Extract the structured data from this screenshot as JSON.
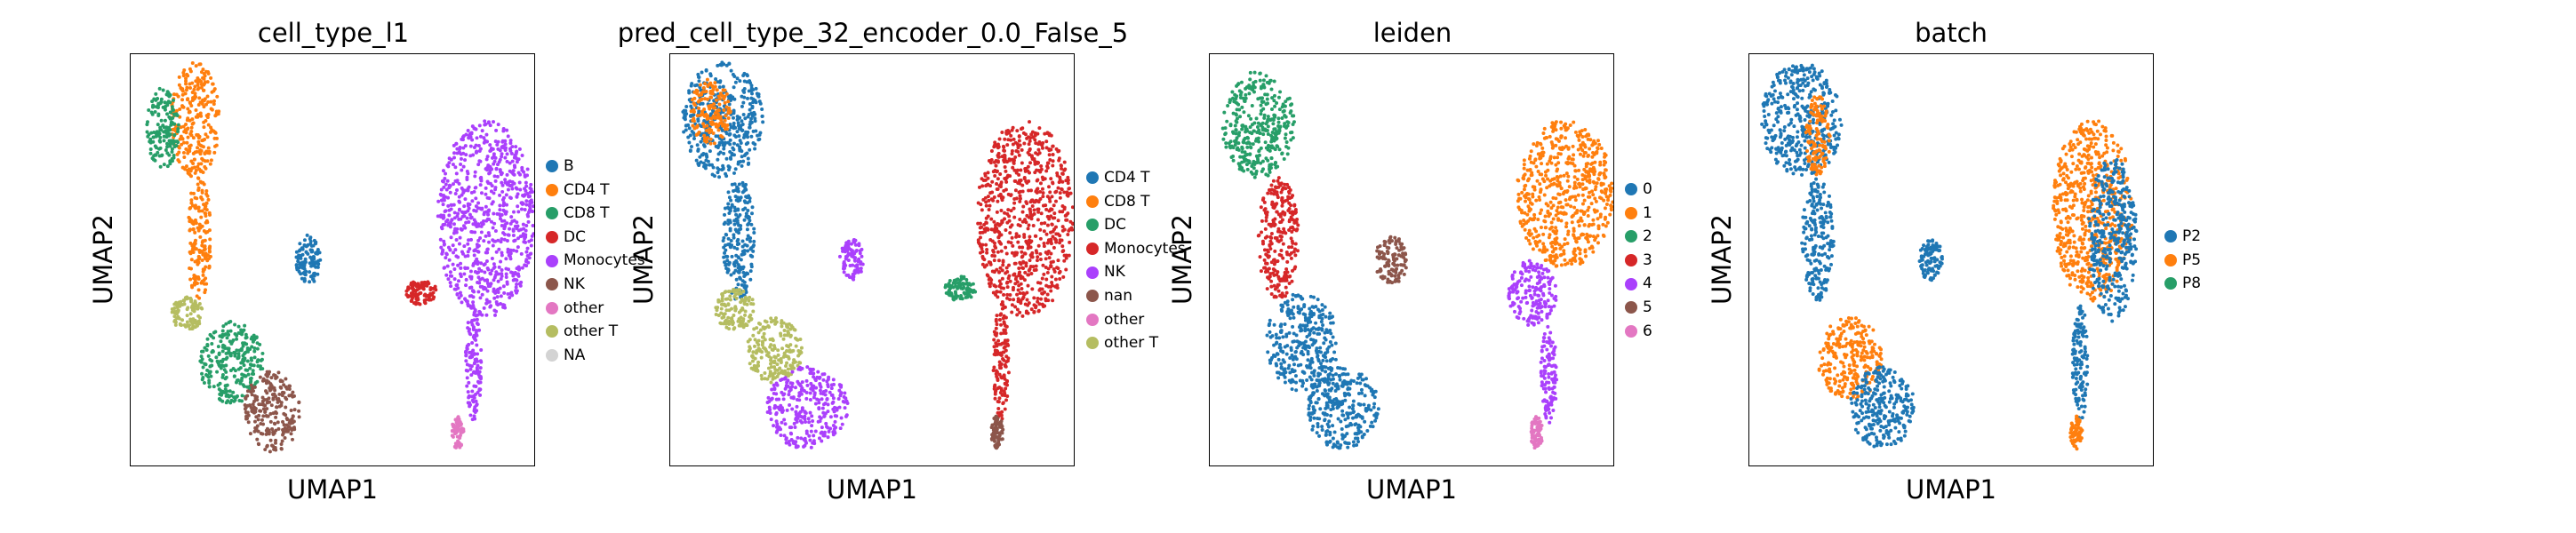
{
  "chart_data": [
    {
      "type": "scatter",
      "title": "cell_type_l1",
      "xlabel": "UMAP1",
      "ylabel": "UMAP2",
      "grid": false,
      "legend_placement": "right",
      "legend": [
        {
          "label": "B",
          "color": "#1f77b4"
        },
        {
          "label": "CD4 T",
          "color": "#ff7f0e"
        },
        {
          "label": "CD8 T",
          "color": "#279e68"
        },
        {
          "label": "DC",
          "color": "#d62728"
        },
        {
          "label": "Monocytes",
          "color": "#aa40fc"
        },
        {
          "label": "NK",
          "color": "#8c564b"
        },
        {
          "label": "other",
          "color": "#e377c2"
        },
        {
          "label": "other T",
          "color": "#b5bd61"
        },
        {
          "label": "NA",
          "color": "#d3d3d3"
        }
      ],
      "regions": [
        {
          "color_index": 1,
          "cx": 0.16,
          "cy": 0.84,
          "rx": 0.06,
          "ry": 0.14
        },
        {
          "color_index": 2,
          "cx": 0.08,
          "cy": 0.82,
          "rx": 0.04,
          "ry": 0.1
        },
        {
          "color_index": 1,
          "cx": 0.17,
          "cy": 0.55,
          "rx": 0.03,
          "ry": 0.15
        },
        {
          "color_index": 7,
          "cx": 0.14,
          "cy": 0.37,
          "rx": 0.04,
          "ry": 0.04
        },
        {
          "color_index": 2,
          "cx": 0.25,
          "cy": 0.25,
          "rx": 0.08,
          "ry": 0.1
        },
        {
          "color_index": 5,
          "cx": 0.35,
          "cy": 0.13,
          "rx": 0.07,
          "ry": 0.1
        },
        {
          "color_index": 0,
          "cx": 0.44,
          "cy": 0.5,
          "rx": 0.03,
          "ry": 0.06
        },
        {
          "color_index": 4,
          "cx": 0.88,
          "cy": 0.6,
          "rx": 0.12,
          "ry": 0.24
        },
        {
          "color_index": 4,
          "cx": 0.85,
          "cy": 0.25,
          "rx": 0.02,
          "ry": 0.14
        },
        {
          "color_index": 3,
          "cx": 0.72,
          "cy": 0.42,
          "rx": 0.04,
          "ry": 0.03
        },
        {
          "color_index": 6,
          "cx": 0.81,
          "cy": 0.08,
          "rx": 0.015,
          "ry": 0.04
        }
      ]
    },
    {
      "type": "scatter",
      "title": "pred_cell_type_32_encoder_0.0_False_5",
      "xlabel": "UMAP1",
      "ylabel": "UMAP2",
      "grid": false,
      "legend_placement": "right",
      "legend": [
        {
          "label": "CD4 T",
          "color": "#1f77b4"
        },
        {
          "label": "CD8 T",
          "color": "#ff7f0e"
        },
        {
          "label": "DC",
          "color": "#279e68"
        },
        {
          "label": "Monocytes",
          "color": "#d62728"
        },
        {
          "label": "NK",
          "color": "#aa40fc"
        },
        {
          "label": "nan",
          "color": "#8c564b"
        },
        {
          "label": "other",
          "color": "#e377c2"
        },
        {
          "label": "other T",
          "color": "#b5bd61"
        }
      ],
      "regions": [
        {
          "color_index": 0,
          "cx": 0.13,
          "cy": 0.84,
          "rx": 0.1,
          "ry": 0.14
        },
        {
          "color_index": 1,
          "cx": 0.1,
          "cy": 0.86,
          "rx": 0.05,
          "ry": 0.08
        },
        {
          "color_index": 0,
          "cx": 0.17,
          "cy": 0.55,
          "rx": 0.04,
          "ry": 0.15
        },
        {
          "color_index": 7,
          "cx": 0.16,
          "cy": 0.38,
          "rx": 0.05,
          "ry": 0.05
        },
        {
          "color_index": 7,
          "cx": 0.26,
          "cy": 0.28,
          "rx": 0.07,
          "ry": 0.08
        },
        {
          "color_index": 4,
          "cx": 0.34,
          "cy": 0.14,
          "rx": 0.1,
          "ry": 0.1
        },
        {
          "color_index": 4,
          "cx": 0.45,
          "cy": 0.5,
          "rx": 0.03,
          "ry": 0.05
        },
        {
          "color_index": 3,
          "cx": 0.88,
          "cy": 0.6,
          "rx": 0.12,
          "ry": 0.24
        },
        {
          "color_index": 3,
          "cx": 0.82,
          "cy": 0.25,
          "rx": 0.02,
          "ry": 0.14
        },
        {
          "color_index": 2,
          "cx": 0.72,
          "cy": 0.43,
          "rx": 0.04,
          "ry": 0.03
        },
        {
          "color_index": 5,
          "cx": 0.81,
          "cy": 0.08,
          "rx": 0.015,
          "ry": 0.04
        }
      ]
    },
    {
      "type": "scatter",
      "title": "leiden",
      "xlabel": "UMAP1",
      "ylabel": "UMAP2",
      "grid": false,
      "legend_placement": "right",
      "legend": [
        {
          "label": "0",
          "color": "#1f77b4"
        },
        {
          "label": "1",
          "color": "#ff7f0e"
        },
        {
          "label": "2",
          "color": "#279e68"
        },
        {
          "label": "3",
          "color": "#d62728"
        },
        {
          "label": "4",
          "color": "#aa40fc"
        },
        {
          "label": "5",
          "color": "#8c564b"
        },
        {
          "label": "6",
          "color": "#e377c2"
        }
      ],
      "regions": [
        {
          "color_index": 2,
          "cx": 0.12,
          "cy": 0.83,
          "rx": 0.09,
          "ry": 0.13
        },
        {
          "color_index": 3,
          "cx": 0.17,
          "cy": 0.55,
          "rx": 0.05,
          "ry": 0.15
        },
        {
          "color_index": 0,
          "cx": 0.23,
          "cy": 0.3,
          "rx": 0.09,
          "ry": 0.12
        },
        {
          "color_index": 0,
          "cx": 0.33,
          "cy": 0.14,
          "rx": 0.09,
          "ry": 0.1
        },
        {
          "color_index": 5,
          "cx": 0.45,
          "cy": 0.5,
          "rx": 0.04,
          "ry": 0.06
        },
        {
          "color_index": 1,
          "cx": 0.88,
          "cy": 0.66,
          "rx": 0.12,
          "ry": 0.18
        },
        {
          "color_index": 4,
          "cx": 0.8,
          "cy": 0.42,
          "rx": 0.06,
          "ry": 0.08
        },
        {
          "color_index": 4,
          "cx": 0.84,
          "cy": 0.22,
          "rx": 0.02,
          "ry": 0.12
        },
        {
          "color_index": 6,
          "cx": 0.81,
          "cy": 0.08,
          "rx": 0.015,
          "ry": 0.04
        }
      ]
    },
    {
      "type": "scatter",
      "title": "batch",
      "xlabel": "UMAP1",
      "ylabel": "UMAP2",
      "grid": false,
      "legend_placement": "right",
      "legend": [
        {
          "label": "P2",
          "color": "#1f77b4"
        },
        {
          "label": "P5",
          "color": "#ff7f0e"
        },
        {
          "label": "P8",
          "color": "#279e68"
        }
      ],
      "regions": [
        {
          "color_index": 0,
          "cx": 0.13,
          "cy": 0.84,
          "rx": 0.1,
          "ry": 0.14
        },
        {
          "color_index": 1,
          "cx": 0.17,
          "cy": 0.8,
          "rx": 0.03,
          "ry": 0.1
        },
        {
          "color_index": 0,
          "cx": 0.17,
          "cy": 0.55,
          "rx": 0.04,
          "ry": 0.15
        },
        {
          "color_index": 1,
          "cx": 0.25,
          "cy": 0.26,
          "rx": 0.08,
          "ry": 0.1
        },
        {
          "color_index": 0,
          "cx": 0.33,
          "cy": 0.14,
          "rx": 0.08,
          "ry": 0.1
        },
        {
          "color_index": 0,
          "cx": 0.45,
          "cy": 0.5,
          "rx": 0.03,
          "ry": 0.05
        },
        {
          "color_index": 1,
          "cx": 0.85,
          "cy": 0.62,
          "rx": 0.1,
          "ry": 0.22
        },
        {
          "color_index": 0,
          "cx": 0.9,
          "cy": 0.55,
          "rx": 0.06,
          "ry": 0.2
        },
        {
          "color_index": 0,
          "cx": 0.82,
          "cy": 0.25,
          "rx": 0.02,
          "ry": 0.14
        },
        {
          "color_index": 1,
          "cx": 0.81,
          "cy": 0.08,
          "rx": 0.015,
          "ry": 0.04
        }
      ]
    }
  ]
}
